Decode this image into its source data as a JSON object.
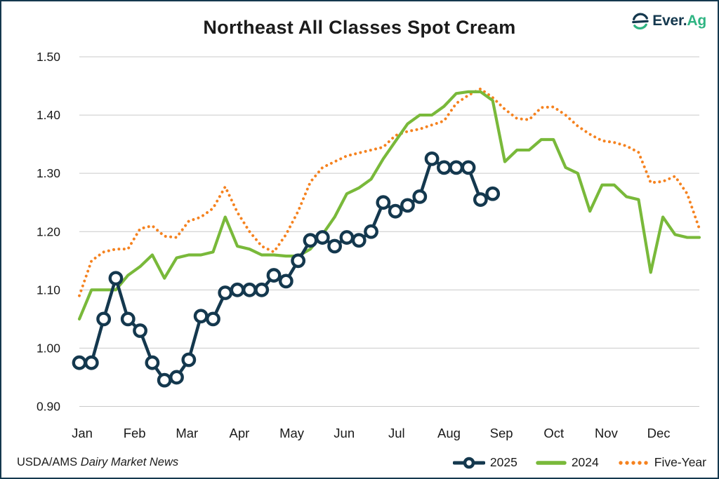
{
  "header": {
    "title": "Northeast All Classes Spot Cream",
    "logo": {
      "primary": "Ever.",
      "accent": "Ag"
    }
  },
  "footer": {
    "source_org": "USDA/AMS",
    "source_publication": "Dairy Market News"
  },
  "chart_data": {
    "type": "line",
    "title": "Northeast All Classes Spot Cream",
    "x_axis": {
      "unit": "weekly",
      "months": [
        "Jan",
        "Feb",
        "Mar",
        "Apr",
        "May",
        "Jun",
        "Jul",
        "Aug",
        "Sep",
        "Oct",
        "Nov",
        "Dec"
      ],
      "weeks": 52
    },
    "y_axis": {
      "min": 0.9,
      "max": 1.5,
      "step": 0.1,
      "tick_labels": [
        "0.90",
        "1.00",
        "1.10",
        "1.20",
        "1.30",
        "1.40",
        "1.50"
      ]
    },
    "grid": "horizontal",
    "legend_position": "bottom-right",
    "colors": {
      "grid": "#c9c9c9",
      "axis_text": "#1a1a1a",
      "navy": "#14384e",
      "green": "#79b93a",
      "orange": "#f5821f",
      "logo_accent": "#2eb482"
    },
    "series": [
      {
        "name": "2025",
        "color": "#14384e",
        "line_style": "solid",
        "marker": "circle",
        "start_week": 1,
        "values": [
          0.975,
          0.975,
          1.05,
          1.12,
          1.05,
          1.03,
          0.975,
          0.945,
          0.95,
          0.98,
          1.055,
          1.05,
          1.095,
          1.1,
          1.1,
          1.1,
          1.125,
          1.115,
          1.15,
          1.185,
          1.19,
          1.175,
          1.19,
          1.185,
          1.2,
          1.25,
          1.235,
          1.245,
          1.26,
          1.325,
          1.31,
          1.31,
          1.31,
          1.255,
          1.265
        ]
      },
      {
        "name": "2024",
        "color": "#79b93a",
        "line_style": "solid",
        "marker": "none",
        "start_week": 1,
        "values": [
          1.05,
          1.1,
          1.1,
          1.1,
          1.125,
          1.14,
          1.16,
          1.12,
          1.155,
          1.16,
          1.16,
          1.165,
          1.225,
          1.175,
          1.17,
          1.16,
          1.16,
          1.158,
          1.158,
          1.17,
          1.195,
          1.225,
          1.265,
          1.275,
          1.29,
          1.325,
          1.355,
          1.385,
          1.4,
          1.4,
          1.415,
          1.437,
          1.44,
          1.44,
          1.425,
          1.32,
          1.34,
          1.34,
          1.358,
          1.358,
          1.31,
          1.3,
          1.235,
          1.28,
          1.28,
          1.26,
          1.255,
          1.13,
          1.225,
          1.195,
          1.19,
          1.19
        ]
      },
      {
        "name": "Five-Year",
        "color": "#f5821f",
        "line_style": "dotted",
        "marker": "none",
        "start_week": 1,
        "values": [
          1.09,
          1.15,
          1.165,
          1.17,
          1.17,
          1.205,
          1.21,
          1.192,
          1.19,
          1.218,
          1.225,
          1.24,
          1.277,
          1.233,
          1.2,
          1.175,
          1.165,
          1.195,
          1.235,
          1.285,
          1.31,
          1.32,
          1.33,
          1.335,
          1.34,
          1.345,
          1.365,
          1.372,
          1.376,
          1.383,
          1.39,
          1.42,
          1.434,
          1.445,
          1.43,
          1.41,
          1.394,
          1.392,
          1.413,
          1.414,
          1.4,
          1.381,
          1.367,
          1.356,
          1.353,
          1.347,
          1.336,
          1.284,
          1.286,
          1.295,
          1.265,
          1.205
        ]
      }
    ]
  }
}
